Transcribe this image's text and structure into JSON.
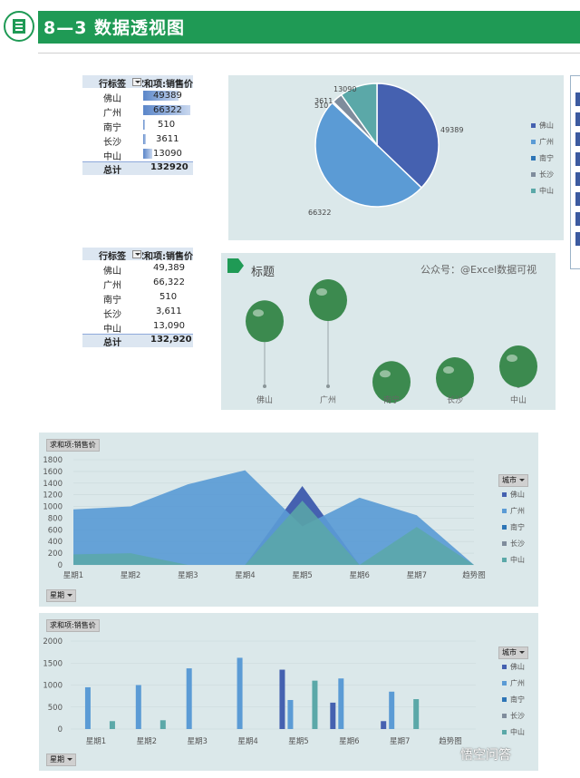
{
  "header": {
    "title": "8—3 数据透视图"
  },
  "pivot1": {
    "col1": "行标签",
    "col2": "求和项:销售价",
    "rows": [
      {
        "label": "佛山",
        "value": "49389"
      },
      {
        "label": "广州",
        "value": "66322"
      },
      {
        "label": "南宁",
        "value": "510"
      },
      {
        "label": "长沙",
        "value": "3611"
      },
      {
        "label": "中山",
        "value": "13090"
      }
    ],
    "bar_values": [
      49389,
      66322,
      510,
      3611,
      13090
    ],
    "total_label": "总计",
    "total_value": "132920"
  },
  "pivot2": {
    "col1": "行标签",
    "col2": "求和项:销售价",
    "rows": [
      {
        "label": "佛山",
        "value": "49,389"
      },
      {
        "label": "广州",
        "value": "66,322"
      },
      {
        "label": "南宁",
        "value": "510"
      },
      {
        "label": "长沙",
        "value": "3,611"
      },
      {
        "label": "中山",
        "value": "13,090"
      }
    ],
    "total_label": "总计",
    "total_value": "132,920"
  },
  "legend_cities": [
    "佛山",
    "广州",
    "南宁",
    "长沙",
    "中山"
  ],
  "colors": {
    "header": "#1f9a55",
    "foshan": "#4561b0",
    "guangzhou": "#5b9bd5",
    "nanning": "#2e75b6",
    "changsha": "#7f8c9c",
    "zhongshan": "#5ba8a8",
    "balloon": "#3c8a4f"
  },
  "balloon_panel": {
    "title": "标题",
    "subtitle": "公众号：@Excel数据可视"
  },
  "area_panel": {
    "field_label": "求和项:销售价",
    "legend_title": "城市",
    "axis_button": "星期"
  },
  "bar_panel": {
    "field_label": "求和项:销售价",
    "legend_title": "城市",
    "axis_button": "星期"
  },
  "watermark": "悟空问答",
  "chart_data": [
    {
      "type": "pie",
      "categories": [
        "佛山",
        "广州",
        "南宁",
        "长沙",
        "中山"
      ],
      "values": [
        49389,
        66322,
        510,
        3611,
        13090
      ],
      "data_labels": [
        "49389",
        "66322",
        "510",
        "3611",
        "13090"
      ],
      "legend": "right"
    },
    {
      "type": "scatter",
      "title": "标题",
      "categories": [
        "佛山",
        "广州",
        "南宁",
        "长沙",
        "中山"
      ],
      "values": [
        49389,
        66322,
        510,
        3611,
        13090
      ],
      "marker": "balloon"
    },
    {
      "type": "area",
      "categories": [
        "星期1",
        "星期2",
        "星期3",
        "星期4",
        "星期5",
        "星期6",
        "星期7",
        "趋势图"
      ],
      "ylim": [
        0,
        1800
      ],
      "yticks": [
        "0",
        "200",
        "400",
        "600",
        "800",
        "1000",
        "1200",
        "1400",
        "1600",
        "1800"
      ],
      "legend": "right",
      "series": [
        {
          "name": "佛山",
          "values": [
            0,
            0,
            0,
            0,
            1350,
            0,
            0,
            0
          ]
        },
        {
          "name": "广州",
          "values": [
            950,
            1000,
            1380,
            1620,
            660,
            1150,
            850,
            0
          ]
        },
        {
          "name": "南宁",
          "values": [
            0,
            0,
            0,
            0,
            0,
            0,
            0,
            0
          ]
        },
        {
          "name": "长沙",
          "values": [
            0,
            0,
            0,
            0,
            0,
            0,
            0,
            0
          ]
        },
        {
          "name": "中山",
          "values": [
            180,
            200,
            0,
            0,
            1100,
            0,
            650,
            0
          ]
        }
      ]
    },
    {
      "type": "bar",
      "categories": [
        "星期1",
        "星期2",
        "星期3",
        "星期4",
        "星期5",
        "星期6",
        "星期7",
        "趋势图"
      ],
      "ylim": [
        0,
        2000
      ],
      "yticks": [
        "0",
        "500",
        "1000",
        "1500",
        "2000"
      ],
      "legend": "right",
      "series": [
        {
          "name": "佛山",
          "values": [
            0,
            0,
            0,
            0,
            1350,
            600,
            180,
            0
          ]
        },
        {
          "name": "广州",
          "values": [
            950,
            1000,
            1380,
            1620,
            660,
            1150,
            850,
            0
          ]
        },
        {
          "name": "南宁",
          "values": [
            0,
            0,
            0,
            0,
            0,
            0,
            0,
            0
          ]
        },
        {
          "name": "长沙",
          "values": [
            0,
            0,
            0,
            0,
            0,
            0,
            0,
            0
          ]
        },
        {
          "name": "中山",
          "values": [
            180,
            200,
            0,
            0,
            1100,
            0,
            680,
            0
          ]
        }
      ]
    }
  ]
}
